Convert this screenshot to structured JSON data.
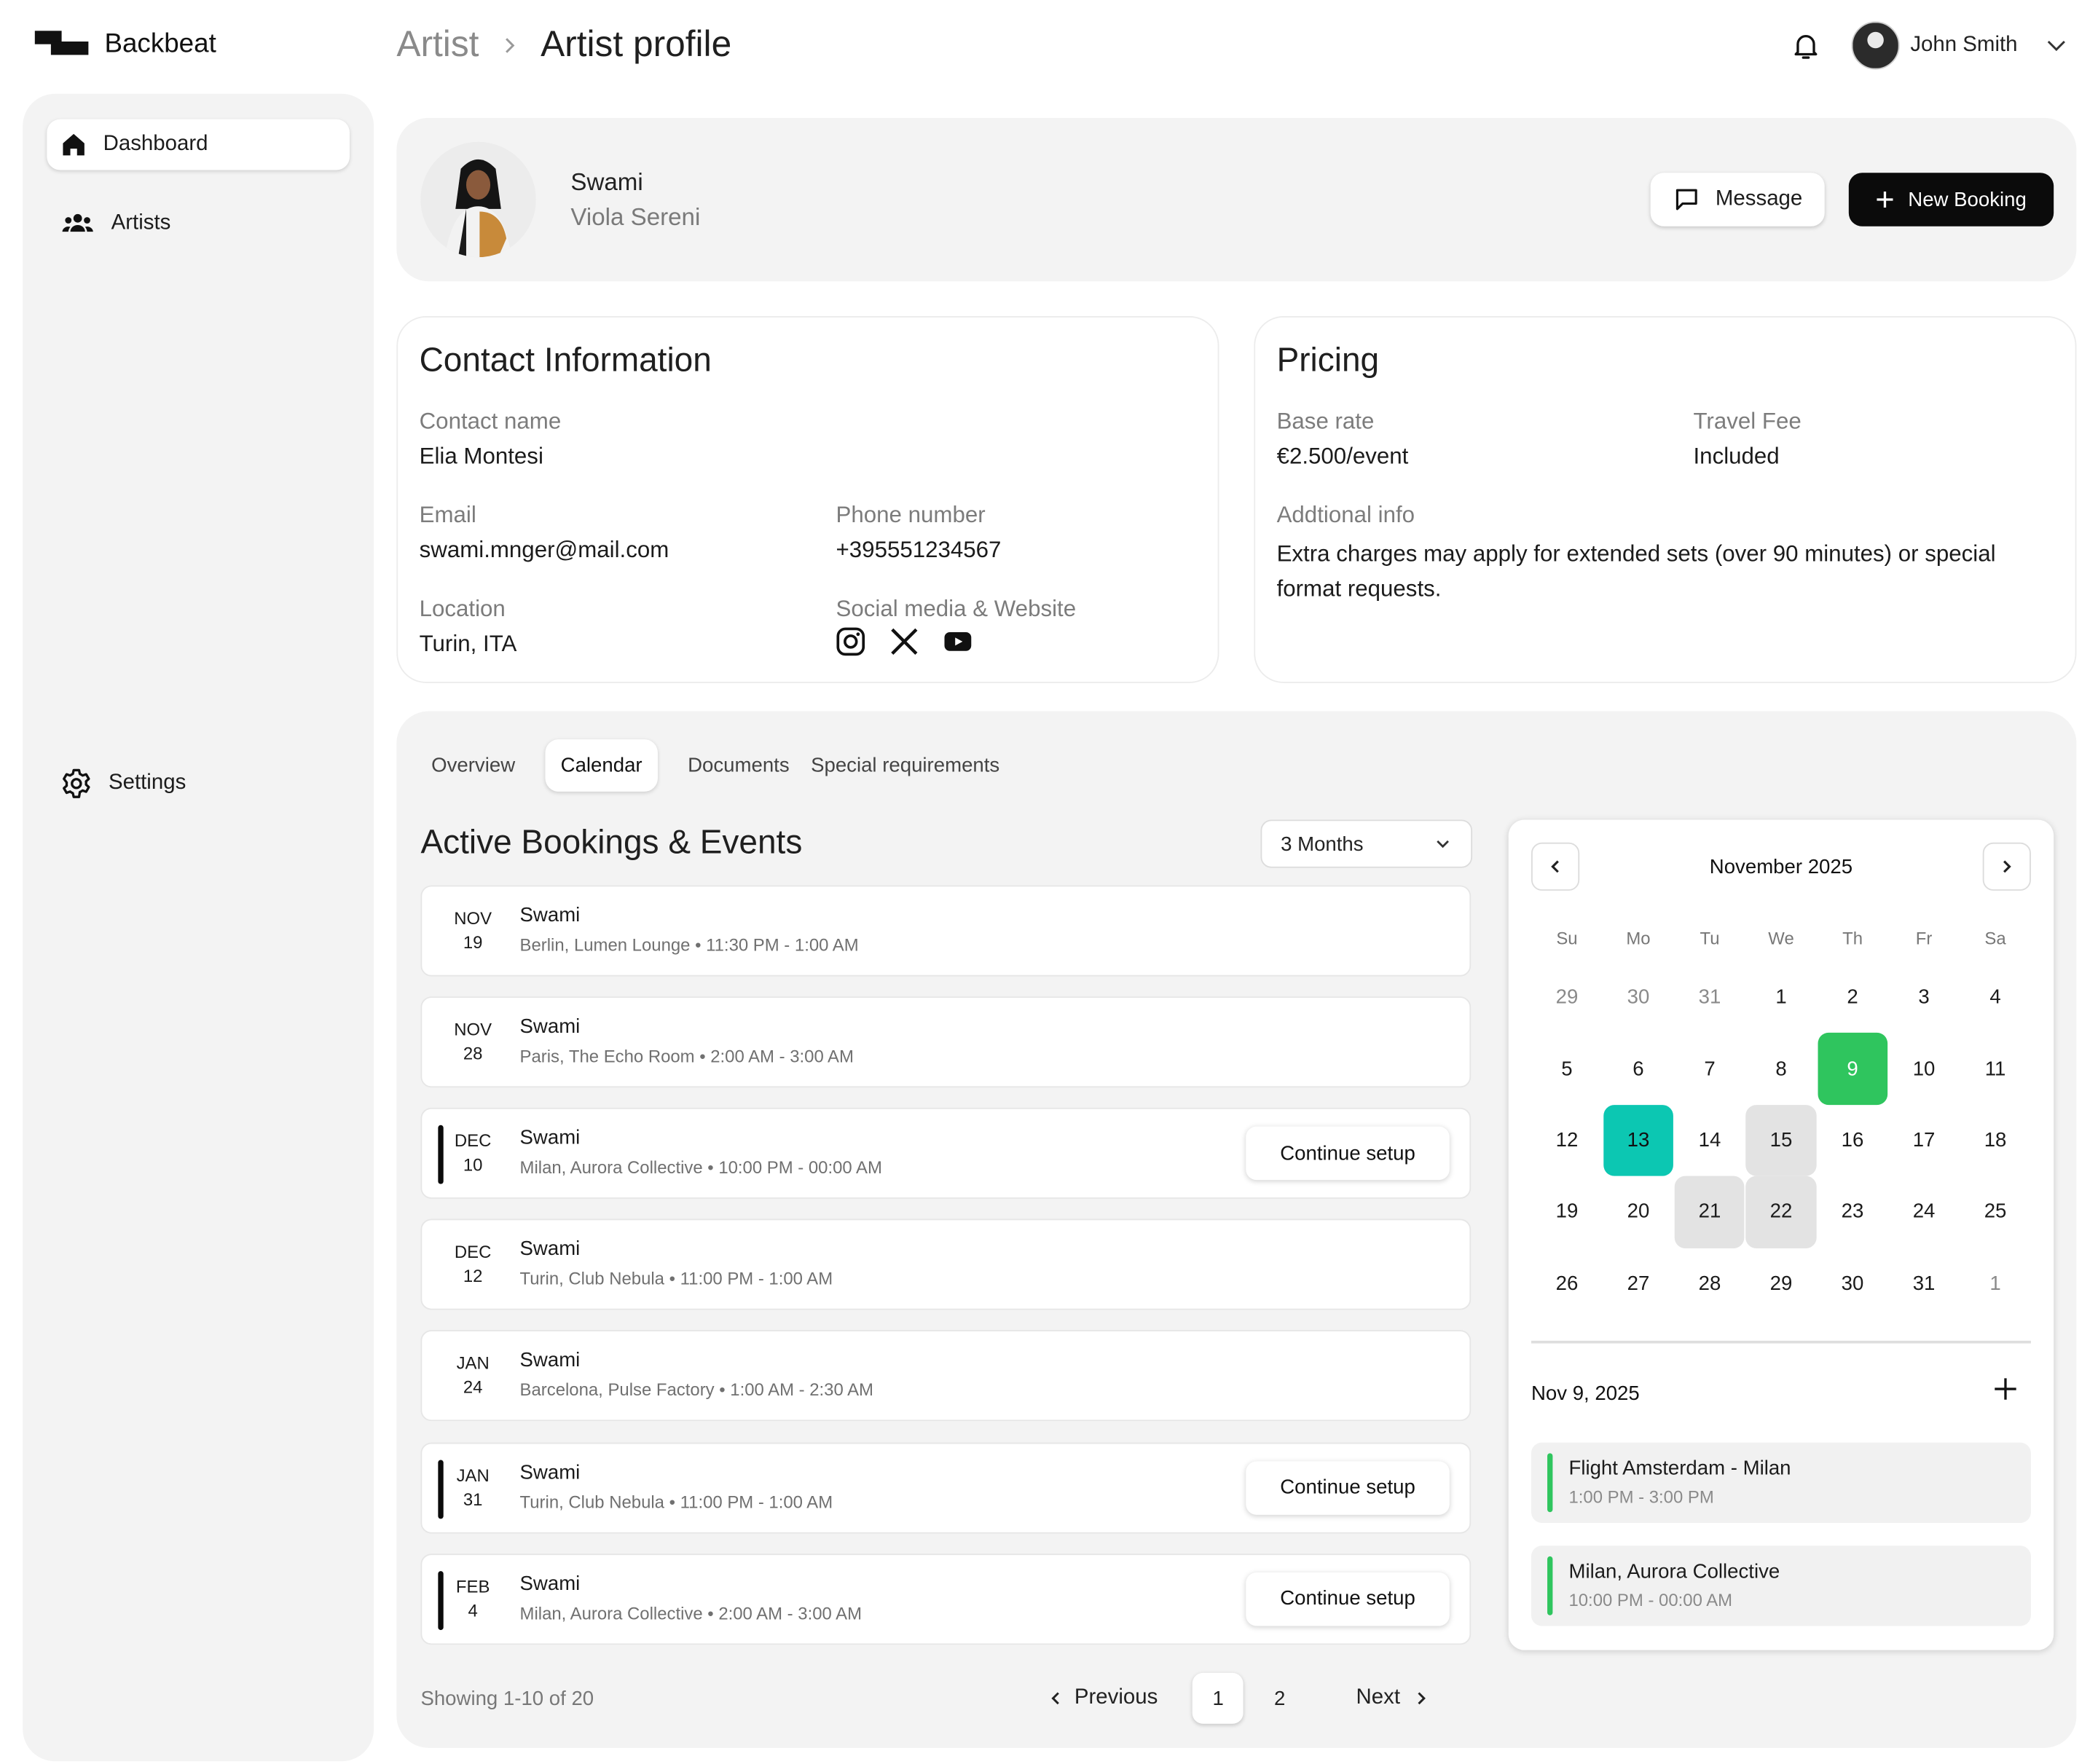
{
  "app": {
    "name": "Backbeat"
  },
  "breadcrumb": {
    "parent": "Artist",
    "current": "Artist profile"
  },
  "user": {
    "name": "John Smith"
  },
  "sidebar": {
    "items": [
      {
        "label": "Dashboard",
        "icon": "home-icon"
      },
      {
        "label": "Artists",
        "icon": "users-icon"
      }
    ],
    "settings": "Settings"
  },
  "profile": {
    "stage_name": "Swami",
    "real_name": "Viola Sereni",
    "message_label": "Message",
    "new_booking_label": "New Booking"
  },
  "contact": {
    "title": "Contact Information",
    "contact_name_label": "Contact name",
    "contact_name": "Elia Montesi",
    "email_label": "Email",
    "email": "swami.mnger@mail.com",
    "phone_label": "Phone number",
    "phone": "+395551234567",
    "location_label": "Location",
    "location": "Turin, ITA",
    "social_label": "Social media & Website",
    "social_icons": [
      "instagram-icon",
      "x-icon",
      "youtube-icon"
    ]
  },
  "pricing": {
    "title": "Pricing",
    "base_rate_label": "Base rate",
    "base_rate": "€2.500/event",
    "travel_fee_label": "Travel Fee",
    "travel_fee": "Included",
    "additional_label": "Addtional info",
    "additional": "Extra charges may apply for extended sets (over 90 minutes) or special format requests."
  },
  "tabs": [
    {
      "label": "Overview",
      "active": false
    },
    {
      "label": "Calendar",
      "active": true
    },
    {
      "label": "Documents",
      "active": false
    },
    {
      "label": "Special requirements",
      "active": false
    }
  ],
  "bookings": {
    "title": "Active Bookings & Events",
    "range": "3 Months",
    "continue_label": "Continue setup",
    "items": [
      {
        "month": "NOV",
        "day": "19",
        "title": "Swami",
        "details": "Berlin, Lumen Lounge • 11:30 PM - 1:00 AM",
        "pending": false
      },
      {
        "month": "NOV",
        "day": "28",
        "title": "Swami",
        "details": "Paris, The Echo Room • 2:00 AM - 3:00 AM",
        "pending": false
      },
      {
        "month": "DEC",
        "day": "10",
        "title": "Swami",
        "details": "Milan, Aurora Collective  •  10:00 PM - 00:00 AM",
        "pending": true
      },
      {
        "month": "DEC",
        "day": "12",
        "title": "Swami",
        "details": "Turin, Club Nebula • 11:00 PM - 1:00 AM",
        "pending": false
      },
      {
        "month": "JAN",
        "day": "24",
        "title": "Swami",
        "details": "Barcelona, Pulse Factory • 1:00 AM - 2:30 AM",
        "pending": false
      },
      {
        "month": "JAN",
        "day": "31",
        "title": "Swami",
        "details": "Turin, Club Nebula • 11:00 PM - 1:00 AM",
        "pending": true
      },
      {
        "month": "FEB",
        "day": "4",
        "title": "Swami",
        "details": "Milan, Aurora Collective  •  2:00 AM - 3:00 AM",
        "pending": true
      }
    ],
    "showing": "Showing 1-10 of 20"
  },
  "pagination": {
    "previous": "Previous",
    "next": "Next",
    "pages": [
      "1",
      "2"
    ],
    "current": "1"
  },
  "calendar": {
    "month": "November 2025",
    "weekdays": [
      "Su",
      "Mo",
      "Tu",
      "We",
      "Th",
      "Fr",
      "Sa"
    ],
    "days": [
      {
        "d": "29",
        "muted": true
      },
      {
        "d": "30",
        "muted": true
      },
      {
        "d": "31",
        "muted": true
      },
      {
        "d": "1"
      },
      {
        "d": "2"
      },
      {
        "d": "3"
      },
      {
        "d": "4"
      },
      {
        "d": "5"
      },
      {
        "d": "6"
      },
      {
        "d": "7"
      },
      {
        "d": "8"
      },
      {
        "d": "9",
        "state": "today"
      },
      {
        "d": "10"
      },
      {
        "d": "11"
      },
      {
        "d": "12"
      },
      {
        "d": "13",
        "state": "sel"
      },
      {
        "d": "14"
      },
      {
        "d": "15",
        "state": "booked"
      },
      {
        "d": "16"
      },
      {
        "d": "17"
      },
      {
        "d": "18"
      },
      {
        "d": "19"
      },
      {
        "d": "20"
      },
      {
        "d": "21",
        "state": "booked"
      },
      {
        "d": "22",
        "state": "booked"
      },
      {
        "d": "23"
      },
      {
        "d": "24"
      },
      {
        "d": "25"
      },
      {
        "d": "26"
      },
      {
        "d": "27"
      },
      {
        "d": "28"
      },
      {
        "d": "29"
      },
      {
        "d": "30"
      },
      {
        "d": "31"
      },
      {
        "d": "1",
        "muted": true
      }
    ],
    "selected_date": "Nov 9, 2025",
    "events": [
      {
        "title": "Flight Amsterdam - Milan",
        "time": "1:00 PM - 3:00 PM"
      },
      {
        "title": "Milan, Aurora Collective",
        "time": "10:00 PM - 00:00 AM"
      }
    ],
    "colors": {
      "today": "#2fc55e",
      "selected": "#0cc7b2",
      "booked": "#e3e3e3"
    }
  }
}
